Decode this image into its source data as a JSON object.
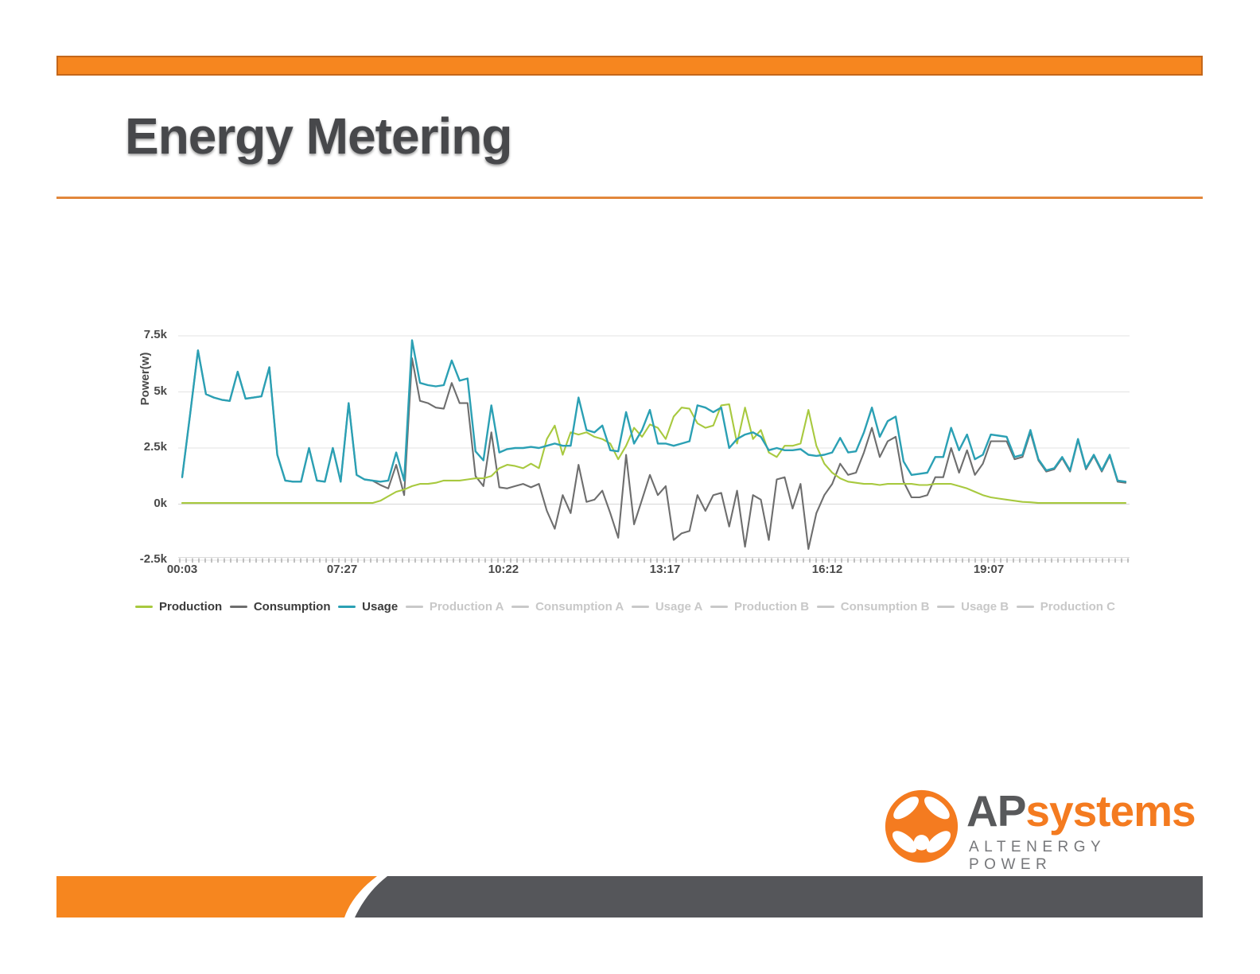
{
  "slide": {
    "title": "Energy Metering"
  },
  "logo": {
    "brand_primary": "AP",
    "brand_secondary": "systems",
    "tagline": "ALTENERGY POWER",
    "orange": "#f47b20",
    "dark_gray": "#58595b"
  },
  "colors": {
    "top_bar_fill": "#f6861f",
    "top_bar_border": "#c4671a",
    "divider": "#e2873b",
    "bottom_bar_orange": "#f6861f",
    "bottom_bar_gray": "#55565a",
    "grid_line": "#e3e3e3",
    "axis_text": "#4a4a4a",
    "inactive_legend": "#c9c9c9"
  },
  "chart_data": {
    "type": "line",
    "title": "",
    "xlabel": "",
    "ylabel": "Power(w)",
    "unit": "kW (axis shown as k of watts)",
    "ylim": [
      -2.5,
      7.5
    ],
    "grid": true,
    "legend_position": "bottom",
    "y_ticks": [
      {
        "label": "7.5k",
        "value": 7.5
      },
      {
        "label": "5k",
        "value": 5
      },
      {
        "label": "2.5k",
        "value": 2.5
      },
      {
        "label": "0k",
        "value": 0
      },
      {
        "label": "-2.5k",
        "value": -2.5
      }
    ],
    "x_ticks": [
      {
        "label": "00:03",
        "pos": 0.0
      },
      {
        "label": "07:27",
        "pos": 0.1695
      },
      {
        "label": "10:22",
        "pos": 0.3406
      },
      {
        "label": "13:17",
        "pos": 0.5118
      },
      {
        "label": "16:12",
        "pos": 0.6838
      },
      {
        "label": "19:07",
        "pos": 0.855
      }
    ],
    "series": [
      {
        "name": "Production",
        "color": "#a8c93f",
        "active": true,
        "values": [
          0.05,
          0.05,
          0.05,
          0.05,
          0.05,
          0.05,
          0.05,
          0.05,
          0.05,
          0.05,
          0.05,
          0.05,
          0.05,
          0.05,
          0.05,
          0.05,
          0.05,
          0.05,
          0.05,
          0.05,
          0.05,
          0.05,
          0.05,
          0.05,
          0.05,
          0.15,
          0.35,
          0.55,
          0.65,
          0.8,
          0.9,
          0.9,
          0.95,
          1.05,
          1.05,
          1.05,
          1.1,
          1.15,
          1.15,
          1.25,
          1.6,
          1.75,
          1.7,
          1.6,
          1.8,
          1.6,
          2.9,
          3.5,
          2.2,
          3.2,
          3.1,
          3.2,
          3.0,
          2.9,
          2.7,
          2.0,
          2.6,
          3.4,
          3.0,
          3.55,
          3.4,
          2.9,
          3.9,
          4.3,
          4.25,
          3.6,
          3.4,
          3.5,
          4.4,
          4.45,
          2.7,
          4.3,
          2.9,
          3.3,
          2.3,
          2.1,
          2.6,
          2.6,
          2.7,
          4.2,
          2.6,
          1.8,
          1.4,
          1.15,
          1.0,
          0.95,
          0.9,
          0.9,
          0.85,
          0.9,
          0.9,
          0.9,
          0.9,
          0.85,
          0.85,
          0.9,
          0.9,
          0.9,
          0.8,
          0.7,
          0.55,
          0.4,
          0.3,
          0.25,
          0.2,
          0.15,
          0.1,
          0.08,
          0.05,
          0.05,
          0.05,
          0.05,
          0.05,
          0.05,
          0.05,
          0.05,
          0.05,
          0.05,
          0.05,
          0.05
        ]
      },
      {
        "name": "Consumption",
        "color": "#6e6e6e",
        "active": true,
        "values": [
          1.2,
          4.0,
          6.85,
          4.9,
          4.75,
          4.65,
          4.6,
          5.9,
          4.7,
          4.75,
          4.8,
          6.1,
          2.2,
          1.05,
          1.0,
          1.0,
          2.5,
          1.05,
          1.0,
          2.5,
          1.0,
          4.5,
          1.3,
          1.1,
          1.05,
          0.85,
          0.7,
          1.75,
          0.4,
          6.5,
          4.6,
          4.5,
          4.3,
          4.25,
          5.4,
          4.5,
          4.5,
          1.25,
          0.8,
          3.2,
          0.75,
          0.7,
          0.8,
          0.9,
          0.75,
          0.9,
          -0.3,
          -1.1,
          0.4,
          -0.4,
          1.75,
          0.1,
          0.2,
          0.6,
          -0.4,
          -1.5,
          2.2,
          -0.9,
          0.2,
          1.3,
          0.4,
          0.8,
          -1.6,
          -1.3,
          -1.2,
          0.4,
          -0.3,
          0.4,
          0.5,
          -1.0,
          0.6,
          -1.9,
          0.4,
          0.2,
          -1.6,
          1.1,
          1.2,
          -0.2,
          0.9,
          -2.0,
          -0.4,
          0.4,
          0.9,
          1.8,
          1.3,
          1.4,
          2.3,
          3.4,
          2.1,
          2.8,
          3.0,
          1.0,
          0.3,
          0.3,
          0.4,
          1.2,
          1.2,
          2.5,
          1.4,
          2.4,
          1.3,
          1.8,
          2.8,
          2.8,
          2.8,
          2.0,
          2.1,
          3.2,
          1.95,
          1.45,
          1.55,
          2.05,
          1.45,
          2.85,
          1.55,
          2.15,
          1.45,
          2.15,
          1.0,
          0.95
        ]
      },
      {
        "name": "Usage",
        "color": "#2ba0b4",
        "active": true,
        "values": [
          1.2,
          4.0,
          6.85,
          4.9,
          4.75,
          4.65,
          4.6,
          5.9,
          4.7,
          4.75,
          4.8,
          6.1,
          2.2,
          1.05,
          1.0,
          1.0,
          2.5,
          1.05,
          1.0,
          2.5,
          1.0,
          4.5,
          1.3,
          1.1,
          1.05,
          1.0,
          1.05,
          2.3,
          1.05,
          7.3,
          5.4,
          5.3,
          5.25,
          5.3,
          6.4,
          5.5,
          5.6,
          2.35,
          1.95,
          4.4,
          2.3,
          2.45,
          2.5,
          2.5,
          2.55,
          2.5,
          2.6,
          2.7,
          2.6,
          2.6,
          4.75,
          3.3,
          3.2,
          3.5,
          2.4,
          2.35,
          4.1,
          2.7,
          3.3,
          4.2,
          2.7,
          2.7,
          2.6,
          2.7,
          2.8,
          4.4,
          4.3,
          4.1,
          4.3,
          2.5,
          2.9,
          3.1,
          3.2,
          3.0,
          2.4,
          2.5,
          2.4,
          2.4,
          2.45,
          2.2,
          2.15,
          2.2,
          2.3,
          2.95,
          2.3,
          2.35,
          3.2,
          4.3,
          3.0,
          3.7,
          3.9,
          1.9,
          1.3,
          1.35,
          1.4,
          2.1,
          2.1,
          3.4,
          2.4,
          3.1,
          2.0,
          2.2,
          3.1,
          3.05,
          3.0,
          2.1,
          2.2,
          3.3,
          2.0,
          1.5,
          1.6,
          2.1,
          1.5,
          2.9,
          1.6,
          2.2,
          1.5,
          2.2,
          1.05,
          1.0
        ]
      }
    ],
    "legend": [
      {
        "label": "Production",
        "color": "#a8c93f",
        "active": true
      },
      {
        "label": "Consumption",
        "color": "#6e6e6e",
        "active": true
      },
      {
        "label": "Usage",
        "color": "#2ba0b4",
        "active": true
      },
      {
        "label": "Production A",
        "color": "#c9c9c9",
        "active": false
      },
      {
        "label": "Consumption A",
        "color": "#c9c9c9",
        "active": false
      },
      {
        "label": "Usage A",
        "color": "#c9c9c9",
        "active": false
      },
      {
        "label": "Production B",
        "color": "#c9c9c9",
        "active": false
      },
      {
        "label": "Consumption B",
        "color": "#c9c9c9",
        "active": false
      },
      {
        "label": "Usage B",
        "color": "#c9c9c9",
        "active": false
      },
      {
        "label": "Production C",
        "color": "#c9c9c9",
        "active": false
      }
    ]
  }
}
